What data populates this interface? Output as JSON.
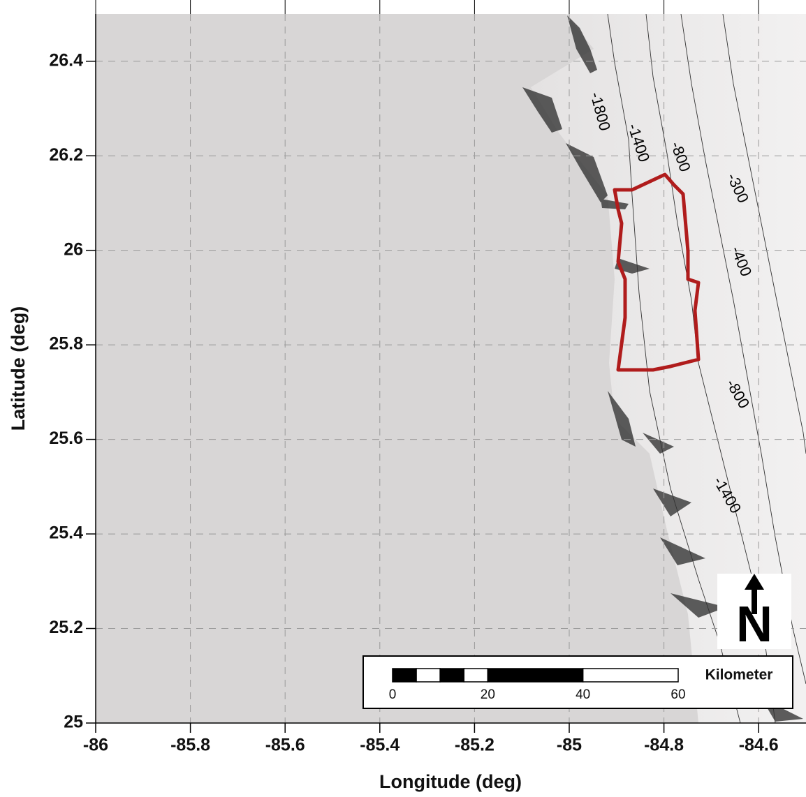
{
  "map": {
    "x_axis": {
      "label": "Longitude (deg)",
      "lim": [
        -86,
        -84.5
      ],
      "ticks": [
        -86,
        -85.8,
        -85.6,
        -85.4,
        -85.2,
        -85,
        -84.8,
        -84.6
      ]
    },
    "y_axis": {
      "label": "Latitude (deg)",
      "lim": [
        25,
        26.5
      ],
      "ticks": [
        25,
        25.2,
        25.4,
        25.6,
        25.8,
        26,
        26.2,
        26.4
      ]
    },
    "contour_labels": [
      "-1800",
      "-1400",
      "-800",
      "-300",
      "-400",
      "-800",
      "-1400"
    ],
    "scale_bar": {
      "ticks": [
        0,
        20,
        40,
        60
      ],
      "unit": "Kilometer"
    },
    "north_arrow": "N"
  }
}
